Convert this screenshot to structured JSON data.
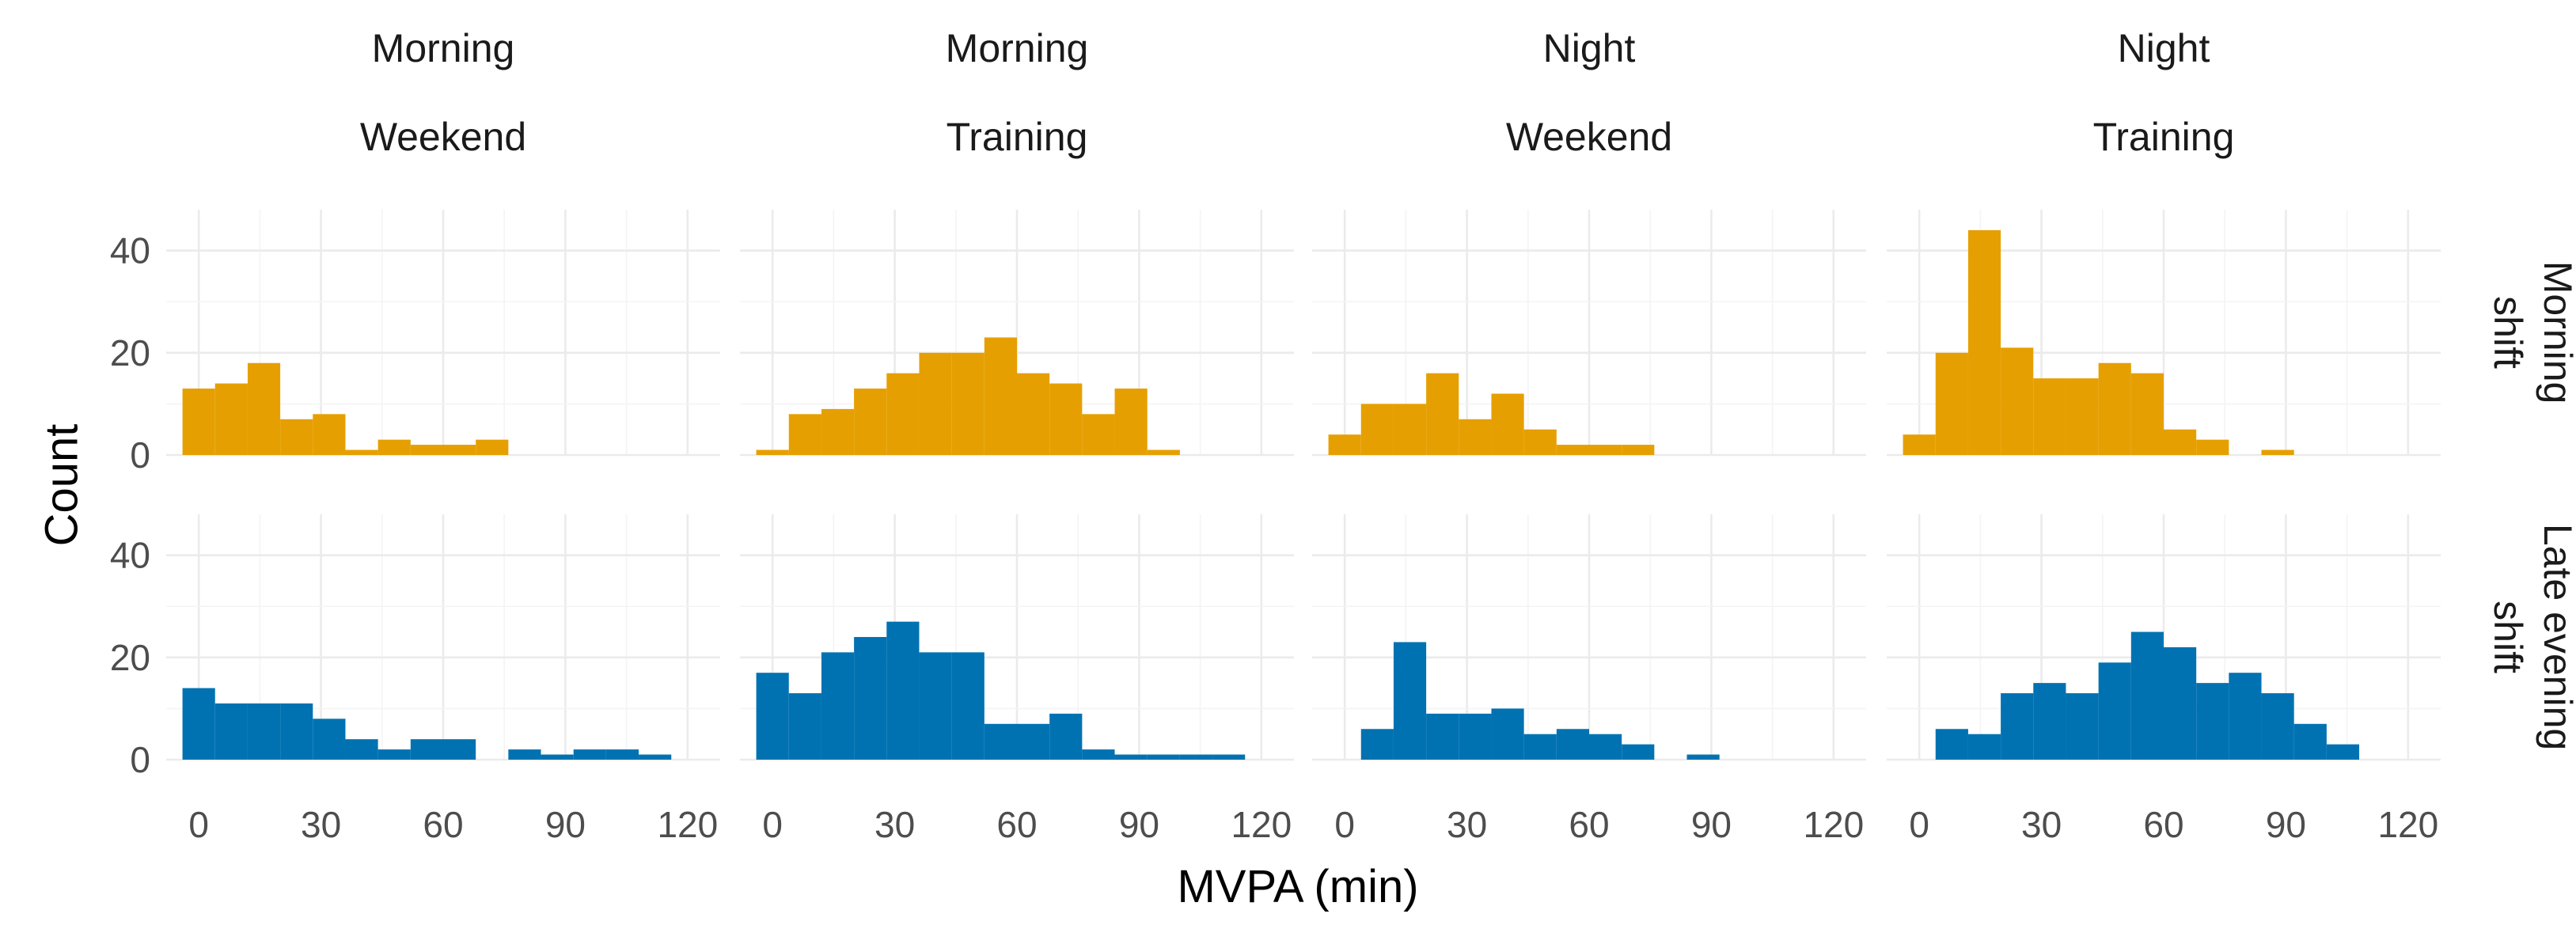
{
  "chart_data": {
    "type": "bar",
    "subtype": "faceted-histogram",
    "xlabel": "MVPA (min)",
    "ylabel": "Count",
    "x_range": [
      -8,
      128
    ],
    "y_range": [
      0,
      48
    ],
    "x_ticks": [
      0,
      30,
      60,
      90,
      120
    ],
    "y_ticks": [
      0,
      20,
      40
    ],
    "bin_width": 8,
    "bin_starts": [
      -4,
      4,
      12,
      20,
      28,
      36,
      44,
      52,
      60,
      68,
      76,
      84,
      92,
      100,
      108
    ],
    "grid": true,
    "columns": [
      {
        "top": "Morning",
        "bottom": "Weekend"
      },
      {
        "top": "Morning",
        "bottom": "Training"
      },
      {
        "top": "Night",
        "bottom": "Weekend"
      },
      {
        "top": "Night",
        "bottom": "Training"
      }
    ],
    "rows": [
      {
        "line1": "Morning",
        "line2": "shift",
        "color": "#E69F00"
      },
      {
        "line1": "Late evening",
        "line2": "shift",
        "color": "#0072B2"
      }
    ],
    "panels": [
      [
        [
          13,
          14,
          18,
          7,
          8,
          1,
          3,
          2,
          2,
          3,
          0,
          0,
          0,
          0,
          0
        ],
        [
          1,
          8,
          9,
          13,
          16,
          20,
          20,
          23,
          16,
          14,
          8,
          13,
          1,
          0,
          0
        ],
        [
          4,
          10,
          10,
          16,
          7,
          12,
          5,
          2,
          2,
          2,
          0,
          0,
          0,
          0,
          0
        ],
        [
          4,
          20,
          44,
          21,
          15,
          15,
          18,
          16,
          5,
          3,
          0,
          1,
          0,
          0,
          0
        ]
      ],
      [
        [
          14,
          11,
          11,
          11,
          8,
          4,
          2,
          4,
          4,
          0,
          2,
          1,
          2,
          2,
          1
        ],
        [
          17,
          13,
          21,
          24,
          27,
          21,
          21,
          7,
          7,
          9,
          2,
          1,
          1,
          1,
          1
        ],
        [
          0,
          6,
          23,
          9,
          9,
          10,
          5,
          6,
          5,
          3,
          0,
          1,
          0,
          0,
          0
        ],
        [
          0,
          6,
          5,
          13,
          15,
          13,
          19,
          25,
          22,
          15,
          17,
          13,
          7,
          3,
          0
        ]
      ]
    ]
  }
}
